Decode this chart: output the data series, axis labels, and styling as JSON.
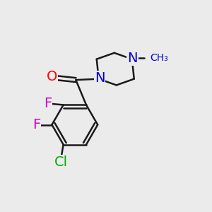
{
  "background_color": "#ebebeb",
  "bond_color": "#1a1a1a",
  "bond_width": 1.8,
  "figsize": [
    3.0,
    3.0
  ],
  "dpi": 100,
  "atom_colors": {
    "O": "#ff0000",
    "N": "#0000cc",
    "F": "#cc00cc",
    "Cl": "#00aa00",
    "C": "#1a1a1a"
  },
  "fontsize": 14
}
